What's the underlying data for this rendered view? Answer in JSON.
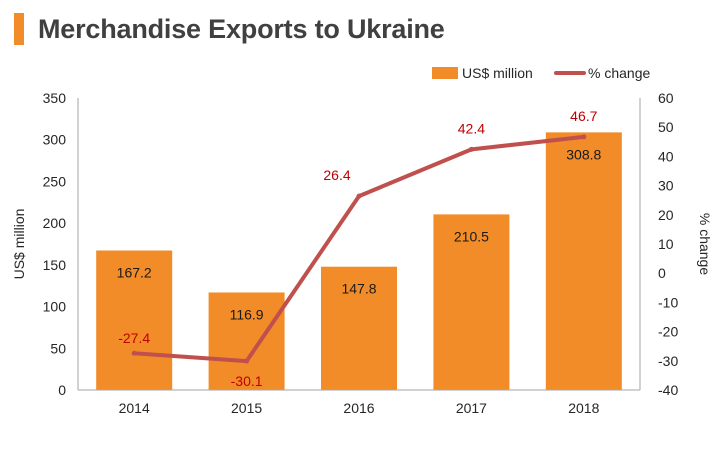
{
  "chart_data": {
    "type": "bar",
    "title": "Merchandise Exports to Ukraine",
    "categories": [
      "2014",
      "2015",
      "2016",
      "2017",
      "2018"
    ],
    "series": [
      {
        "name": "US$ million",
        "type": "bar",
        "axis": "left",
        "color": "#F28C28",
        "values": [
          167.2,
          116.9,
          147.8,
          210.5,
          308.8
        ],
        "labels": [
          "167.2",
          "116.9",
          "147.8",
          "210.5",
          "308.8"
        ]
      },
      {
        "name": "% change",
        "type": "line",
        "axis": "right",
        "color": "#C0504D",
        "values": [
          -27.4,
          -30.1,
          26.4,
          42.4,
          46.7
        ],
        "labels": [
          "-27.4",
          "-30.1",
          "26.4",
          "42.4",
          "46.7"
        ]
      }
    ],
    "ylabel": "US$ million",
    "y2label": "% change",
    "ylim": [
      0,
      350
    ],
    "y2lim": [
      -40,
      60
    ],
    "yticks": [
      "0",
      "50",
      "100",
      "150",
      "200",
      "250",
      "300",
      "350"
    ],
    "y2ticks": [
      "-40",
      "-30",
      "-20",
      "-10",
      "0",
      "10",
      "20",
      "30",
      "40",
      "50",
      "60"
    ],
    "legend_position": "top-right",
    "grid": false
  }
}
